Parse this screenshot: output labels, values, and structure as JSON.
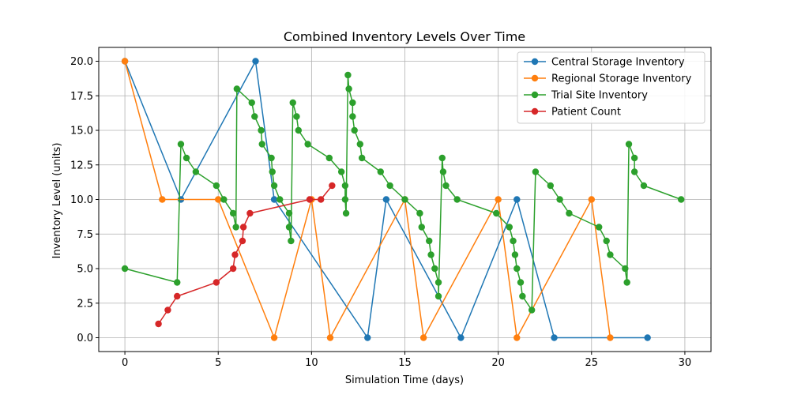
{
  "chart_data": {
    "type": "line",
    "title": "Combined Inventory Levels Over Time",
    "xlabel": "Simulation Time (days)",
    "ylabel": "Inventory Level (units)",
    "xlim": [
      -1.4,
      31.4
    ],
    "ylim": [
      -1.0,
      21.0
    ],
    "xticks": [
      0,
      5,
      10,
      15,
      20,
      25,
      30
    ],
    "yticks": [
      0.0,
      2.5,
      5.0,
      7.5,
      10.0,
      12.5,
      15.0,
      17.5,
      20.0
    ],
    "grid": true,
    "legend_position": "top-right",
    "series": [
      {
        "name": "Central Storage Inventory",
        "color": "#1f77b4",
        "points": [
          [
            0,
            20
          ],
          [
            3,
            10
          ],
          [
            7,
            20
          ],
          [
            8,
            10
          ],
          [
            13,
            0
          ],
          [
            14,
            10
          ],
          [
            18,
            0
          ],
          [
            21,
            10
          ],
          [
            23,
            0
          ],
          [
            28,
            0
          ]
        ]
      },
      {
        "name": "Regional Storage Inventory",
        "color": "#ff7f0e",
        "points": [
          [
            0,
            20
          ],
          [
            2,
            10
          ],
          [
            5,
            10
          ],
          [
            8,
            0
          ],
          [
            10,
            10
          ],
          [
            11,
            0
          ],
          [
            15,
            10
          ],
          [
            16,
            0
          ],
          [
            20,
            10
          ],
          [
            21,
            0
          ],
          [
            25,
            10
          ],
          [
            26,
            0
          ]
        ]
      },
      {
        "name": "Trial Site Inventory",
        "color": "#2ca02c",
        "points": [
          [
            0,
            5
          ],
          [
            2.8,
            4
          ],
          [
            3,
            14
          ],
          [
            3.3,
            13
          ],
          [
            3.8,
            12
          ],
          [
            4.9,
            11
          ],
          [
            5.3,
            10
          ],
          [
            5.8,
            9
          ],
          [
            5.95,
            8
          ],
          [
            6,
            18
          ],
          [
            6.8,
            17
          ],
          [
            6.95,
            16
          ],
          [
            7.3,
            15
          ],
          [
            7.35,
            14
          ],
          [
            7.85,
            13
          ],
          [
            7.9,
            12
          ],
          [
            8.0,
            11
          ],
          [
            8.3,
            10
          ],
          [
            8.8,
            9
          ],
          [
            8.8,
            8
          ],
          [
            8.9,
            7
          ],
          [
            9.0,
            17
          ],
          [
            9.2,
            16
          ],
          [
            9.3,
            15
          ],
          [
            9.8,
            14
          ],
          [
            10.95,
            13
          ],
          [
            11.6,
            12
          ],
          [
            11.8,
            11
          ],
          [
            11.8,
            10
          ],
          [
            11.85,
            9
          ],
          [
            11.95,
            19
          ],
          [
            12.0,
            18
          ],
          [
            12.2,
            17
          ],
          [
            12.2,
            16
          ],
          [
            12.3,
            15
          ],
          [
            12.6,
            14
          ],
          [
            12.7,
            13
          ],
          [
            13.7,
            12
          ],
          [
            14.2,
            11
          ],
          [
            15.0,
            10
          ],
          [
            15.8,
            9
          ],
          [
            15.9,
            8
          ],
          [
            16.3,
            7
          ],
          [
            16.4,
            6
          ],
          [
            16.6,
            5
          ],
          [
            16.8,
            4
          ],
          [
            16.8,
            3
          ],
          [
            17.0,
            13
          ],
          [
            17.05,
            12
          ],
          [
            17.2,
            11
          ],
          [
            17.8,
            10
          ],
          [
            19.9,
            9
          ],
          [
            20.6,
            8
          ],
          [
            20.8,
            7
          ],
          [
            20.9,
            6
          ],
          [
            21.0,
            5
          ],
          [
            21.2,
            4
          ],
          [
            21.3,
            3
          ],
          [
            21.8,
            2
          ],
          [
            22.0,
            12
          ],
          [
            22.8,
            11
          ],
          [
            23.3,
            10
          ],
          [
            23.8,
            9
          ],
          [
            25.4,
            8
          ],
          [
            25.8,
            7
          ],
          [
            26.0,
            6
          ],
          [
            26.8,
            5
          ],
          [
            26.9,
            4
          ],
          [
            27.0,
            14
          ],
          [
            27.3,
            13
          ],
          [
            27.3,
            12
          ],
          [
            27.8,
            11
          ],
          [
            29.8,
            10
          ]
        ]
      },
      {
        "name": "Patient Count",
        "color": "#d62728",
        "points": [
          [
            1.8,
            1
          ],
          [
            2.3,
            2
          ],
          [
            2.8,
            3
          ],
          [
            4.9,
            4
          ],
          [
            5.8,
            5
          ],
          [
            5.9,
            6
          ],
          [
            6.3,
            7
          ],
          [
            6.35,
            8
          ],
          [
            6.7,
            9
          ],
          [
            9.9,
            10
          ],
          [
            10.5,
            10
          ],
          [
            11.1,
            11
          ]
        ]
      }
    ]
  }
}
